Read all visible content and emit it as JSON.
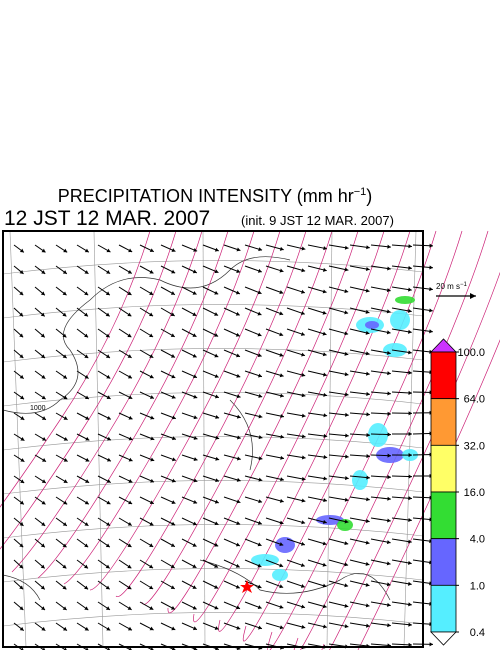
{
  "title": {
    "text": "PRECIPITATION INTENSITY (mm hr",
    "sup": "−1",
    "end": ")"
  },
  "valid_time": "12 JST 12 MAR. 2007",
  "init_time": "(init. 9 JST 12 MAR. 2007)",
  "vector_legend": {
    "text": "20 m s",
    "sup": "−1"
  },
  "contour_label": "1000",
  "colorbar": {
    "ticks": [
      {
        "value": 100,
        "label": "100.0"
      },
      {
        "value": 64,
        "label": "64.0"
      },
      {
        "value": 32,
        "label": "32.0"
      },
      {
        "value": 16,
        "label": "16.0"
      },
      {
        "value": 4,
        "label": "4.0"
      },
      {
        "value": 1,
        "label": "1.0"
      },
      {
        "value": 0.4,
        "label": "0.4"
      }
    ],
    "colors": [
      "#ff0000",
      "#ff9933",
      "#ffff66",
      "#33dd33",
      "#6666ff",
      "#55eeff"
    ],
    "over_color": "#cc33ff",
    "under_color": "#ffffff"
  }
}
